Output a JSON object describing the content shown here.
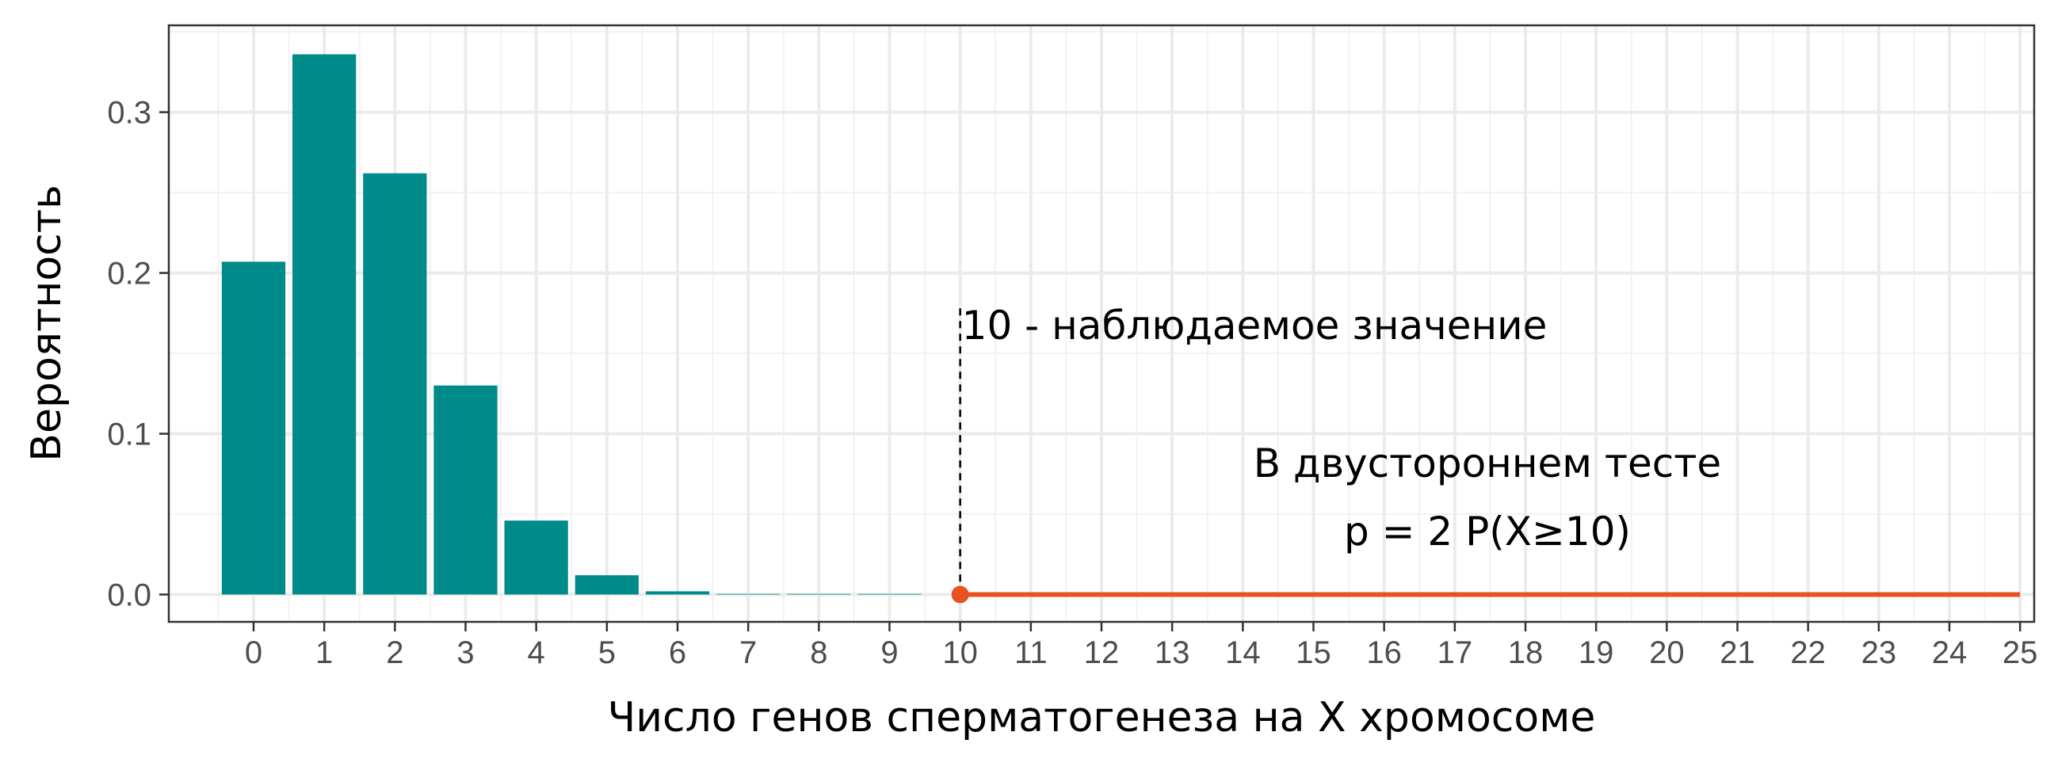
{
  "chart_data": {
    "type": "bar",
    "title": "",
    "xlabel": "Число генов сперматогенеза на X хромосоме",
    "ylabel": "Вероятность",
    "x_ticks": [
      "0",
      "1",
      "2",
      "3",
      "4",
      "5",
      "6",
      "7",
      "8",
      "9",
      "10",
      "11",
      "12",
      "13",
      "14",
      "15",
      "16",
      "17",
      "18",
      "19",
      "20",
      "21",
      "22",
      "23",
      "24",
      "25"
    ],
    "y_ticks": [
      "0.0",
      "0.1",
      "0.2",
      "0.3"
    ],
    "xlim": [
      -1.2,
      25.2
    ],
    "ylim": [
      -0.017,
      0.354
    ],
    "grid": true,
    "bar_color": "#008B8B",
    "bars": {
      "x": [
        0,
        1,
        2,
        3,
        4,
        5,
        6,
        7,
        8,
        9
      ],
      "values": [
        0.207,
        0.336,
        0.262,
        0.13,
        0.046,
        0.012,
        0.002,
        0.0003,
        4e-05,
        4e-06
      ]
    },
    "observed_value": 10,
    "highlight_range": {
      "from": 10,
      "to": 25,
      "color": "#E8521F"
    },
    "annotations": {
      "observed": "10  - наблюдаемое значение",
      "test_line1": "В двустороннем тесте",
      "test_line2": "p = 2 P(X≥10)"
    }
  }
}
